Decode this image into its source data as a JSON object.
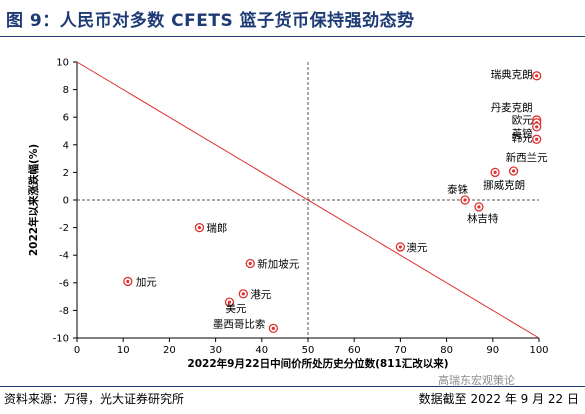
{
  "header": {
    "title": "图 9：人民币对多数 CFETS 篮子货币保持强劲态势"
  },
  "footer": {
    "source": "资料来源：万得，光大证券研究所",
    "date_note": "数据截至 2022 年 9 月 22 日"
  },
  "watermark": {
    "text": "高瑞东宏观策论"
  },
  "colors": {
    "title": "#1f3b75",
    "marker": "#e03030",
    "trend_line": "#e03030",
    "reference_line": "#555555"
  },
  "chart_data": {
    "type": "scatter",
    "title": "",
    "xlabel": "2022年9月22日中间价所处历史分位数(811汇改以来)",
    "ylabel": "2022年以来涨跌幅(%)",
    "xlim": [
      0,
      100
    ],
    "ylim": [
      -10,
      10
    ],
    "xticks": [
      0,
      10,
      20,
      30,
      40,
      50,
      60,
      70,
      80,
      90,
      100
    ],
    "yticks": [
      -10,
      -8,
      -6,
      -4,
      -2,
      0,
      2,
      4,
      6,
      8,
      10
    ],
    "reference_lines": {
      "x": 50,
      "y": 0,
      "style": "dashed"
    },
    "trend_line": {
      "from": [
        0,
        10
      ],
      "to": [
        100,
        -10
      ]
    },
    "grid": false,
    "points": [
      {
        "label": "瑞典克朗",
        "x": 99.5,
        "y": 9.0
      },
      {
        "label": "丹麦克朗",
        "x": 99.5,
        "y": 5.8
      },
      {
        "label": "欧元",
        "x": 99.5,
        "y": 5.6
      },
      {
        "label": "英镑",
        "x": 99.5,
        "y": 5.3
      },
      {
        "label": "韩元",
        "x": 99.5,
        "y": 4.4
      },
      {
        "label": "新西兰元",
        "x": 94.5,
        "y": 2.1
      },
      {
        "label": "挪威克朗",
        "x": 90.5,
        "y": 2.0
      },
      {
        "label": "泰铢",
        "x": 84.0,
        "y": 0.0
      },
      {
        "label": "林吉特",
        "x": 87.0,
        "y": -0.5
      },
      {
        "label": "澳元",
        "x": 70.0,
        "y": -3.4
      },
      {
        "label": "瑞郎",
        "x": 26.5,
        "y": -2.0
      },
      {
        "label": "新加坡元",
        "x": 37.5,
        "y": -4.6
      },
      {
        "label": "加元",
        "x": 11.0,
        "y": -5.9
      },
      {
        "label": "港元",
        "x": 36.0,
        "y": -6.8
      },
      {
        "label": "美元",
        "x": 33.0,
        "y": -7.4
      },
      {
        "label": "墨西哥比索",
        "x": 42.5,
        "y": -9.3
      }
    ]
  }
}
